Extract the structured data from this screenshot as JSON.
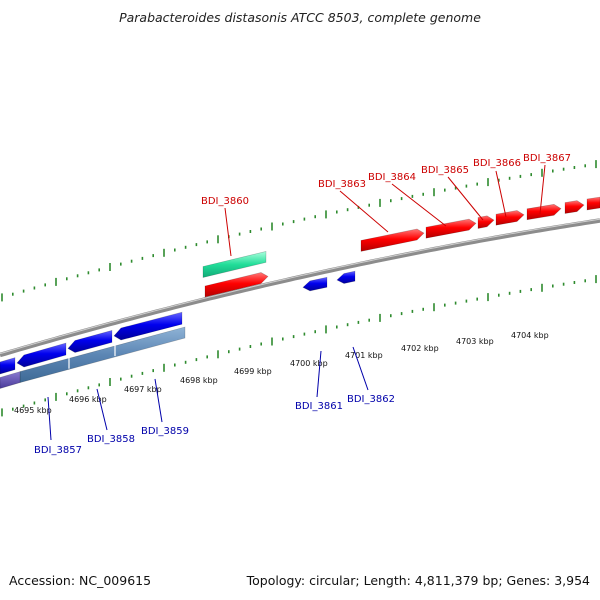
{
  "title": "Parabacteroides distasonis ATCC 8503, complete genome",
  "footer": {
    "accession": "Accession: NC_009615",
    "summary": "Topology: circular; Length: 4,811,379 bp; Genes: 3,954"
  },
  "colors": {
    "forward_gene": "#ff0000",
    "reverse_gene": "#0000ee",
    "rna_gene": "#22dd99",
    "ruler_dots": "#2e8b2e",
    "backbone": "#8c8c8c",
    "label_forward": "#cc0000",
    "label_reverse": "#0000aa"
  },
  "scale_labels": [
    "4695 kbp",
    "4696 kbp",
    "4697 kbp",
    "4698 kbp",
    "4699 kbp",
    "4700 kbp",
    "4701 kbp",
    "4702 kbp",
    "4703 kbp",
    "4704 kbp"
  ],
  "gene_labels": {
    "top": [
      "BDI_3860",
      "BDI_3863",
      "BDI_3864",
      "BDI_3865",
      "BDI_3866",
      "BDI_3867"
    ],
    "bottom": [
      "BDI_3857",
      "BDI_3858",
      "BDI_3859",
      "BDI_3861",
      "BDI_3862"
    ]
  }
}
